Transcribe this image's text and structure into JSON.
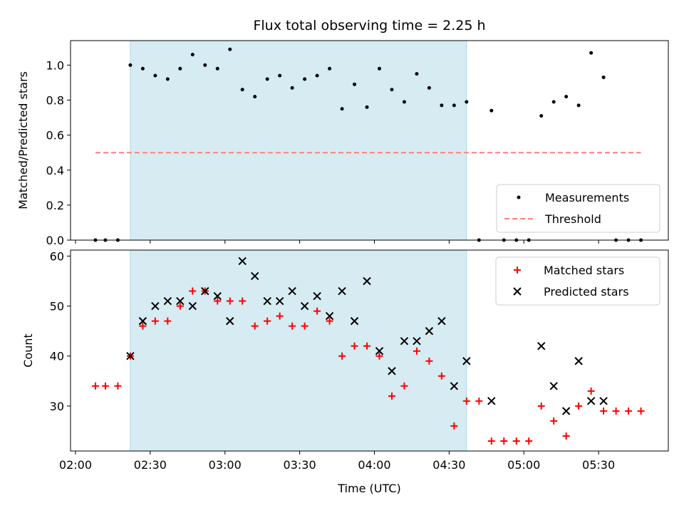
{
  "chart_data": [
    {
      "type": "scatter",
      "title": "Flux total observing time = 2.25 h",
      "xlabel": "",
      "ylabel": "Matched/Predicted stars",
      "ylim": [
        0,
        1.14
      ],
      "xlim": [
        "01:58",
        "05:58"
      ],
      "yticks": [
        0.0,
        0.2,
        0.4,
        0.6,
        0.8,
        1.0
      ],
      "tick_labels": [
        "0.0",
        "0.2",
        "0.4",
        "0.6",
        "0.8",
        "1.0"
      ],
      "grid": false,
      "legend": "bottom-right",
      "shaded_interval": [
        "02:22",
        "04:37"
      ],
      "series": [
        {
          "name": "Measurements",
          "marker": "dot",
          "color": "#000000",
          "points": [
            [
              "02:08",
              0.0
            ],
            [
              "02:12",
              0.0
            ],
            [
              "02:17",
              0.0
            ],
            [
              "02:22",
              1.0
            ],
            [
              "02:27",
              0.98
            ],
            [
              "02:32",
              0.94
            ],
            [
              "02:37",
              0.92
            ],
            [
              "02:42",
              0.98
            ],
            [
              "02:47",
              1.06
            ],
            [
              "02:52",
              1.0
            ],
            [
              "02:57",
              0.98
            ],
            [
              "03:02",
              1.09
            ],
            [
              "03:07",
              0.86
            ],
            [
              "03:12",
              0.82
            ],
            [
              "03:17",
              0.92
            ],
            [
              "03:22",
              0.94
            ],
            [
              "03:27",
              0.87
            ],
            [
              "03:32",
              0.92
            ],
            [
              "03:37",
              0.94
            ],
            [
              "03:42",
              0.98
            ],
            [
              "03:47",
              0.75
            ],
            [
              "03:52",
              0.89
            ],
            [
              "03:57",
              0.76
            ],
            [
              "04:02",
              0.98
            ],
            [
              "04:07",
              0.86
            ],
            [
              "04:12",
              0.79
            ],
            [
              "04:17",
              0.95
            ],
            [
              "04:22",
              0.87
            ],
            [
              "04:27",
              0.77
            ],
            [
              "04:32",
              0.77
            ],
            [
              "04:37",
              0.79
            ],
            [
              "04:42",
              0.0
            ],
            [
              "04:47",
              0.74
            ],
            [
              "04:52",
              0.0
            ],
            [
              "04:57",
              0.0
            ],
            [
              "05:02",
              0.0
            ],
            [
              "05:07",
              0.71
            ],
            [
              "05:12",
              0.79
            ],
            [
              "05:17",
              0.82
            ],
            [
              "05:22",
              0.77
            ],
            [
              "05:27",
              1.07
            ],
            [
              "05:32",
              0.93
            ],
            [
              "05:37",
              0.0
            ],
            [
              "05:42",
              0.0
            ],
            [
              "05:47",
              0.0
            ]
          ]
        },
        {
          "name": "Threshold",
          "marker": "dashed-line",
          "color": "#ff7f7f",
          "points": [
            [
              "02:08",
              0.5
            ],
            [
              "05:47",
              0.5
            ]
          ]
        }
      ]
    },
    {
      "type": "scatter",
      "title": "",
      "xlabel": "Time (UTC)",
      "ylabel": "Count",
      "ylim": [
        21,
        61.2
      ],
      "xlim": [
        "01:58",
        "05:58"
      ],
      "yticks": [
        30,
        40,
        50,
        60
      ],
      "tick_labels": [
        "30",
        "40",
        "50",
        "60"
      ],
      "xtick_labels": [
        "02:00",
        "02:30",
        "03:00",
        "03:30",
        "04:00",
        "04:30",
        "05:00",
        "05:30"
      ],
      "grid": false,
      "legend": "top-right",
      "shaded_interval": [
        "02:22",
        "04:37"
      ],
      "series": [
        {
          "name": "Matched stars",
          "marker": "plus",
          "color": "#ff0000",
          "points": [
            [
              "02:08",
              34
            ],
            [
              "02:12",
              34
            ],
            [
              "02:17",
              34
            ],
            [
              "02:22",
              40
            ],
            [
              "02:27",
              46
            ],
            [
              "02:32",
              47
            ],
            [
              "02:37",
              47
            ],
            [
              "02:42",
              50
            ],
            [
              "02:47",
              53
            ],
            [
              "02:52",
              53
            ],
            [
              "02:57",
              51
            ],
            [
              "03:02",
              51
            ],
            [
              "03:07",
              51
            ],
            [
              "03:12",
              46
            ],
            [
              "03:17",
              47
            ],
            [
              "03:22",
              48
            ],
            [
              "03:27",
              46
            ],
            [
              "03:32",
              46
            ],
            [
              "03:37",
              49
            ],
            [
              "03:42",
              47
            ],
            [
              "03:47",
              40
            ],
            [
              "03:52",
              42
            ],
            [
              "03:57",
              42
            ],
            [
              "04:02",
              40
            ],
            [
              "04:07",
              32
            ],
            [
              "04:12",
              34
            ],
            [
              "04:17",
              41
            ],
            [
              "04:22",
              39
            ],
            [
              "04:27",
              36
            ],
            [
              "04:32",
              26
            ],
            [
              "04:37",
              31
            ],
            [
              "04:42",
              31
            ],
            [
              "04:47",
              23
            ],
            [
              "04:52",
              23
            ],
            [
              "04:57",
              23
            ],
            [
              "05:02",
              23
            ],
            [
              "05:07",
              30
            ],
            [
              "05:12",
              27
            ],
            [
              "05:17",
              24
            ],
            [
              "05:22",
              30
            ],
            [
              "05:27",
              33
            ],
            [
              "05:32",
              29
            ],
            [
              "05:37",
              29
            ],
            [
              "05:42",
              29
            ],
            [
              "05:47",
              29
            ]
          ]
        },
        {
          "name": "Predicted stars",
          "marker": "x",
          "color": "#000000",
          "points": [
            [
              "02:22",
              40
            ],
            [
              "02:27",
              47
            ],
            [
              "02:32",
              50
            ],
            [
              "02:37",
              51
            ],
            [
              "02:42",
              51
            ],
            [
              "02:47",
              50
            ],
            [
              "02:52",
              53
            ],
            [
              "02:57",
              52
            ],
            [
              "03:02",
              47
            ],
            [
              "03:07",
              59
            ],
            [
              "03:12",
              56
            ],
            [
              "03:17",
              51
            ],
            [
              "03:22",
              51
            ],
            [
              "03:27",
              53
            ],
            [
              "03:32",
              50
            ],
            [
              "03:37",
              52
            ],
            [
              "03:42",
              48
            ],
            [
              "03:47",
              53
            ],
            [
              "03:52",
              47
            ],
            [
              "03:57",
              55
            ],
            [
              "04:02",
              41
            ],
            [
              "04:07",
              37
            ],
            [
              "04:12",
              43
            ],
            [
              "04:17",
              43
            ],
            [
              "04:22",
              45
            ],
            [
              "04:27",
              47
            ],
            [
              "04:32",
              34
            ],
            [
              "04:37",
              39
            ],
            [
              "04:47",
              31
            ],
            [
              "05:07",
              42
            ],
            [
              "05:12",
              34
            ],
            [
              "05:17",
              29
            ],
            [
              "05:22",
              39
            ],
            [
              "05:27",
              31
            ],
            [
              "05:32",
              31
            ]
          ]
        }
      ]
    }
  ]
}
